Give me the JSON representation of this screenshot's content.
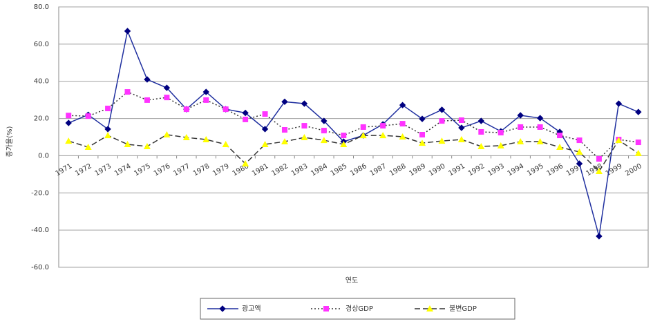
{
  "chart_data": {
    "type": "line",
    "x_label": "연도",
    "y_label": "증가율(%)",
    "categories": [
      "1971",
      "1972",
      "1973",
      "1974",
      "1975",
      "1976",
      "1977",
      "1978",
      "1979",
      "1980",
      "1981",
      "1982",
      "1983",
      "1984",
      "1985",
      "1986",
      "1987",
      "1988",
      "1989",
      "1990",
      "1991",
      "1992",
      "1993",
      "1994",
      "1995",
      "1996",
      "1997",
      "1998",
      "1999",
      "2000"
    ],
    "series": [
      {
        "name": "광고액",
        "color": "#000080",
        "line_color": "#1f2f9f",
        "line_style": "solid",
        "marker": "diamond",
        "values": [
          17.6,
          22,
          14.3,
          67,
          41,
          36.5,
          25,
          34.3,
          25,
          23,
          14.3,
          29,
          28,
          18.7,
          7.6,
          10.9,
          16.9,
          27.2,
          19.8,
          24.7,
          15,
          18.7,
          13.1,
          21.7,
          20.2,
          12.8,
          -4.3,
          -43.3,
          28,
          23.5
        ]
      },
      {
        "name": "경상GDP",
        "color": "#ff33ff",
        "line_color": "#333333",
        "line_style": "dotted",
        "marker": "square",
        "values": [
          21.6,
          21.3,
          25.4,
          34.3,
          29.9,
          31.3,
          25,
          29.9,
          25,
          19.5,
          22.4,
          13.9,
          16.1,
          13.5,
          10.9,
          15.4,
          16.1,
          17.2,
          11.3,
          18.7,
          19.1,
          12.8,
          12.4,
          15.4,
          15.4,
          10.9,
          8.3,
          -1.7,
          8.7,
          7.2
        ]
      },
      {
        "name": "불변GDP",
        "color": "#ffff00",
        "line_color": "#333333",
        "line_style": "dashed",
        "marker": "triangle",
        "values": [
          7.9,
          4.6,
          10.9,
          6.1,
          5,
          11.3,
          9.8,
          8.7,
          6.1,
          -4.3,
          6.1,
          7.6,
          9.8,
          8.3,
          6.1,
          10.9,
          10.9,
          10.2,
          6.8,
          7.9,
          8.7,
          5,
          5.4,
          7.6,
          7.6,
          4.6,
          2,
          -8.4,
          8.3,
          1.3
        ]
      }
    ],
    "ylim": [
      -60,
      80
    ],
    "yticks": [
      {
        "value": -60,
        "label": "-60.0"
      },
      {
        "value": -40,
        "label": "-40.0"
      },
      {
        "value": -20,
        "label": "-20.0"
      },
      {
        "value": 0,
        "label": "0.0"
      },
      {
        "value": 20,
        "label": "20.0"
      },
      {
        "value": 40,
        "label": "40.0"
      },
      {
        "value": 60,
        "label": "60.0"
      },
      {
        "value": 80,
        "label": "80.0"
      }
    ],
    "grid": true,
    "legend": "bottom"
  }
}
